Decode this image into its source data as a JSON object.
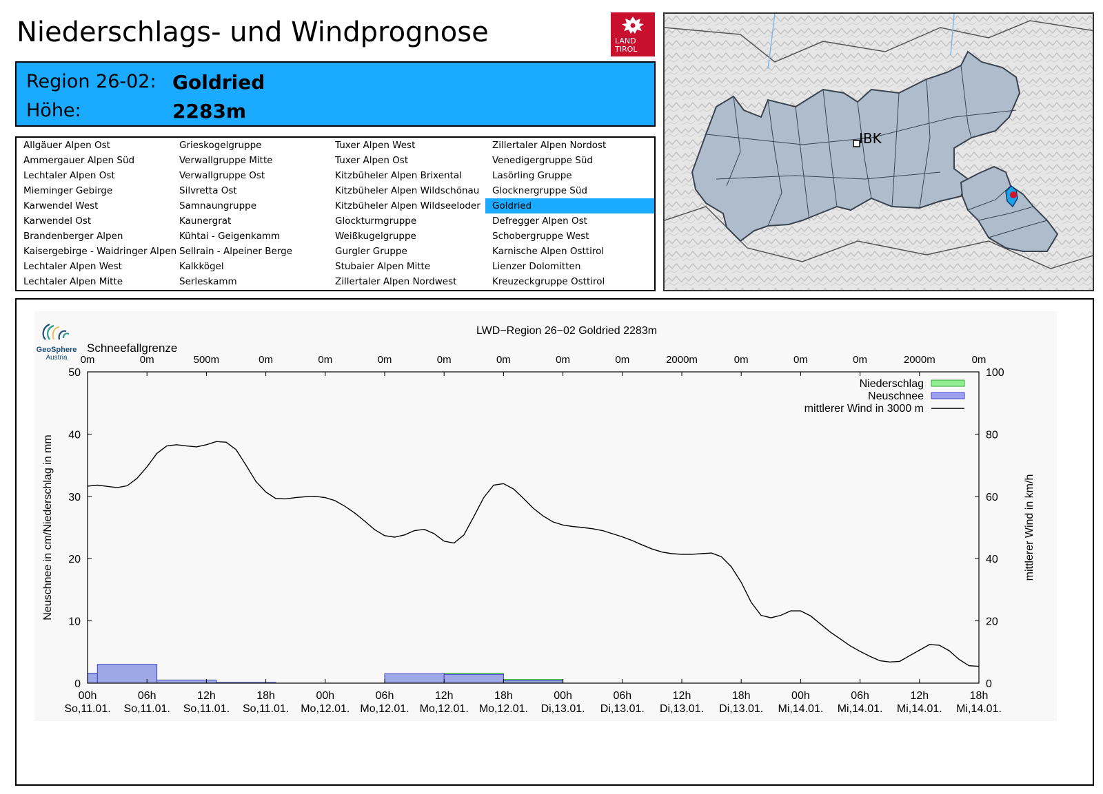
{
  "header": {
    "title": "Niederschlags- und Windprognose",
    "logo_text": [
      "LAND",
      "TIROL"
    ]
  },
  "region": {
    "region_label": "Region 26-02:",
    "region_name": "Goldried",
    "height_label": "Höhe:",
    "height_value": "2283m"
  },
  "region_list": {
    "selected": "Goldried",
    "columns": [
      [
        "Allgäuer Alpen Ost",
        "Ammergauer Alpen Süd",
        "Lechtaler Alpen Ost",
        "Mieminger Gebirge",
        "Karwendel West",
        "Karwendel Ost",
        "Brandenberger Alpen",
        "Kaisergebirge - Waidringer Alpen",
        "Lechtaler Alpen West",
        "Lechtaler Alpen Mitte"
      ],
      [
        "Grieskogelgruppe",
        "Verwallgruppe Mitte",
        "Verwallgruppe Ost",
        "Silvretta Ost",
        "Samnaungruppe",
        "Kaunergrat",
        "Kühtai - Geigenkamm",
        "Sellrain - Alpeiner Berge",
        "Kalkkögel",
        "Serleskamm"
      ],
      [
        "Tuxer Alpen West",
        "Tuxer Alpen Ost",
        "Kitzbüheler Alpen Brixental",
        "Kitzbüheler Alpen Wildschönau",
        "Kitzbüheler Alpen Wildseeloder",
        "Glockturmgruppe",
        "Weißkugelgruppe",
        "Gurgler Gruppe",
        "Stubaier Alpen Mitte",
        "Zillertaler Alpen Nordwest"
      ],
      [
        "Zillertaler Alpen Nordost",
        "Venedigergruppe Süd",
        "Lasörling Gruppe",
        "Glocknergruppe Süd",
        "Goldried",
        "Defregger Alpen Ost",
        "Schobergruppe West",
        "Karnische Alpen Osttirol",
        "Lienzer Dolomitten",
        "Kreuzeckgruppe Osttirol"
      ]
    ]
  },
  "map": {
    "city_label": "IBK",
    "region_fill": "#aebccb",
    "selected_fill": "#1aa3e8",
    "marker_color": "#d0142c"
  },
  "geosphere_logo": {
    "line1": "GeoSphere",
    "line2": "Austria"
  },
  "chart_data": {
    "type": "bar+line",
    "title": "LWD−Region 26−02 Goldried 2283m",
    "snowline_label": "Schneefallgrenze",
    "snowline": [
      "0m",
      "0m",
      "500m",
      "0m",
      "0m",
      "0m",
      "0m",
      "0m",
      "0m",
      "0m",
      "2000m",
      "0m",
      "0m",
      "0m",
      "2000m",
      "0m"
    ],
    "x_ticks": [
      [
        "00h",
        "So,11.01."
      ],
      [
        "06h",
        "So,11.01."
      ],
      [
        "12h",
        "So,11.01."
      ],
      [
        "18h",
        "So,11.01."
      ],
      [
        "00h",
        "Mo,12.01."
      ],
      [
        "06h",
        "Mo,12.01."
      ],
      [
        "12h",
        "Mo,12.01."
      ],
      [
        "18h",
        "Mo,12.01."
      ],
      [
        "00h",
        "Di,13.01."
      ],
      [
        "06h",
        "Di,13.01."
      ],
      [
        "12h",
        "Di,13.01."
      ],
      [
        "18h",
        "Di,13.01."
      ],
      [
        "00h",
        "Mi,14.01."
      ],
      [
        "06h",
        "Mi,14.01."
      ],
      [
        "12h",
        "Mi,14.01."
      ],
      [
        "18h",
        "Mi,14.01."
      ]
    ],
    "x_range_hours": [
      0,
      90
    ],
    "ylabel_left": "Neuschnee in cm/Niederschlag in mm",
    "ylim_left": [
      0,
      50
    ],
    "yticks_left": [
      0,
      10,
      20,
      30,
      40,
      50
    ],
    "ylabel_right": "mittlerer Wind in km/h",
    "ylim_right": [
      0,
      100
    ],
    "yticks_right": [
      0,
      20,
      40,
      60,
      80,
      100
    ],
    "legend_position": "top-right",
    "series": [
      {
        "name": "Niederschlag",
        "kind": "bar",
        "color": "#90ee90",
        "bars": [
          [
            0,
            1,
            1.6
          ],
          [
            1,
            7,
            3.0
          ],
          [
            7,
            13,
            0.5
          ],
          [
            13,
            19,
            0.1
          ],
          [
            30,
            36,
            1.5
          ],
          [
            36,
            42,
            1.6
          ],
          [
            42,
            48,
            0.6
          ]
        ]
      },
      {
        "name": "Neuschnee",
        "kind": "bar",
        "color": "#a0a0f0",
        "bars": [
          [
            0,
            1,
            1.6
          ],
          [
            1,
            7,
            3.0
          ],
          [
            7,
            13,
            0.5
          ],
          [
            13,
            19,
            0.1
          ],
          [
            30,
            36,
            1.5
          ],
          [
            36,
            42,
            1.4
          ],
          [
            42,
            48,
            0.4
          ]
        ]
      },
      {
        "name": "mittlerer Wind in 3000 m",
        "kind": "line",
        "axis": "right",
        "color": "#000000",
        "x": [
          0,
          1,
          2,
          3,
          4,
          5,
          6,
          7,
          8,
          9,
          10,
          11,
          12,
          13,
          14,
          15,
          16,
          17,
          18,
          19,
          20,
          21,
          22,
          23,
          24,
          25,
          26,
          27,
          28,
          29,
          30,
          31,
          32,
          33,
          34,
          35,
          36,
          37,
          38,
          39,
          40,
          41,
          42,
          43,
          44,
          45,
          46,
          47,
          48,
          49,
          50,
          51,
          52,
          53,
          54,
          55,
          56,
          57,
          58,
          59,
          60,
          61,
          62,
          63,
          64,
          65,
          66,
          67,
          68,
          69,
          70,
          71,
          72,
          73,
          74,
          75,
          76,
          77,
          78,
          79,
          80,
          81,
          82,
          83,
          84,
          85,
          86,
          87,
          88,
          89,
          90
        ],
        "y": [
          63.3,
          63.6,
          63.2,
          62.8,
          63.4,
          65.8,
          69.5,
          73.8,
          76.2,
          76.6,
          76.2,
          75.9,
          76.6,
          77.6,
          77.4,
          75.0,
          70.0,
          64.8,
          61.4,
          59.3,
          59.2,
          59.6,
          59.9,
          60.0,
          59.6,
          58.6,
          56.8,
          54.6,
          52.0,
          49.3,
          47.4,
          46.9,
          47.6,
          49.0,
          49.4,
          48.0,
          45.6,
          45.0,
          47.6,
          53.5,
          59.6,
          63.6,
          64.1,
          62.4,
          59.4,
          56.2,
          53.7,
          51.8,
          50.8,
          50.3,
          50.0,
          49.6,
          49.0,
          48.0,
          47.0,
          45.8,
          44.4,
          43.1,
          42.1,
          41.6,
          41.4,
          41.4,
          41.6,
          41.8,
          40.6,
          37.4,
          32.4,
          26.0,
          21.8,
          21.0,
          21.8,
          23.2,
          23.2,
          21.6,
          19.0,
          16.4,
          14.2,
          12.0,
          10.2,
          8.6,
          7.2,
          6.8,
          7.0,
          8.8,
          10.6,
          12.4,
          12.2,
          10.4,
          7.6,
          5.6,
          5.4
        ],
        "note": "hours since So,11.01. 00h"
      }
    ]
  }
}
